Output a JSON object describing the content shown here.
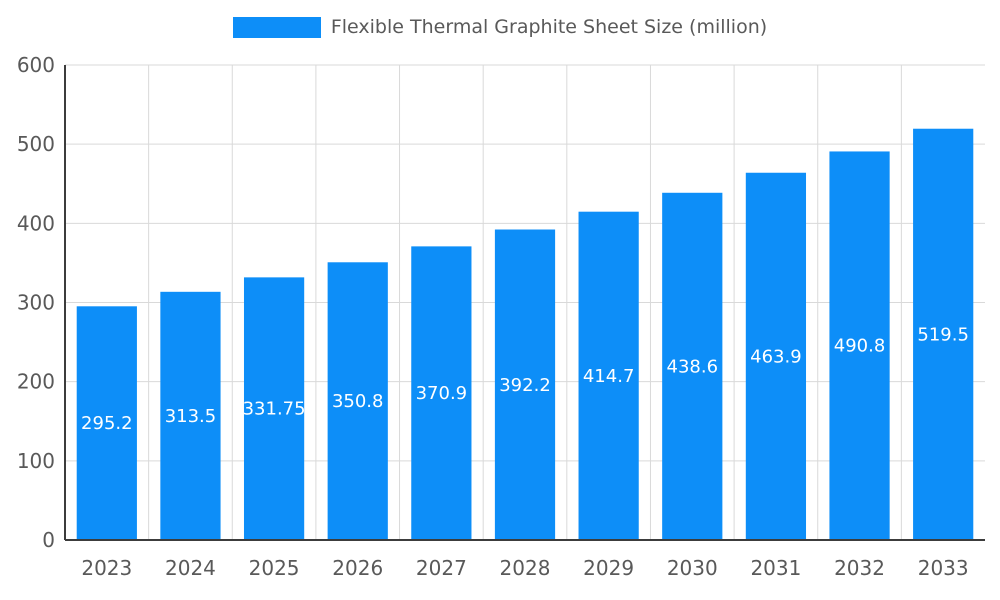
{
  "legend": {
    "label": "Flexible Thermal Graphite Sheet Size (million)"
  },
  "chart_data": {
    "type": "bar",
    "title": "Flexible Thermal Graphite Sheet Size (million)",
    "categories": [
      "2023",
      "2024",
      "2025",
      "2026",
      "2027",
      "2028",
      "2029",
      "2030",
      "2031",
      "2032",
      "2033"
    ],
    "values": [
      295.2,
      313.5,
      331.75,
      350.8,
      370.9,
      392.2,
      414.7,
      438.6,
      463.9,
      490.8,
      519.5
    ],
    "xlabel": "",
    "ylabel": "",
    "ylim": [
      0,
      600
    ],
    "yticks": [
      0,
      100,
      200,
      300,
      400,
      500,
      600
    ],
    "grid": true,
    "legend_position": "top",
    "bar_color": "#0d8ef8",
    "value_label_color": "#ffffff",
    "axis_text_color": "#595959",
    "axis_line_color": "#3c3c3c",
    "grid_line_color": "#d9d9d9"
  }
}
